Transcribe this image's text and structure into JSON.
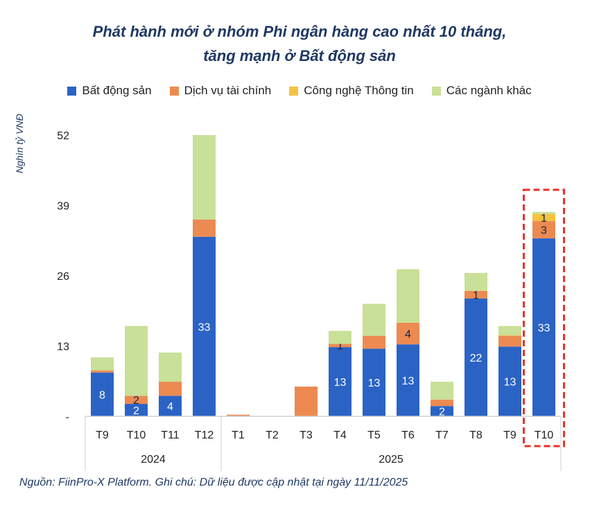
{
  "chart_data": {
    "type": "bar",
    "stacked": true,
    "title": "Phát hành mới ở nhóm Phi ngân hàng cao nhất 10 tháng, tăng mạnh ở Bất động sản",
    "title_lines": [
      "Phát hành mới ở nhóm Phi ngân hàng cao nhất 10 tháng,",
      "tăng mạnh ở Bất động sản"
    ],
    "ylabel": "Nghìn tỷ VNĐ",
    "ylim": [
      0,
      52
    ],
    "yticks": [
      "-",
      "13",
      "26",
      "39",
      "52"
    ],
    "ytick_values": [
      0,
      13,
      26,
      39,
      52
    ],
    "grid": false,
    "legend_position": "top",
    "categories": [
      "T9",
      "T10",
      "T11",
      "T12",
      "T1",
      "T2",
      "T3",
      "T4",
      "T5",
      "T6",
      "T7",
      "T8",
      "T9",
      "T10"
    ],
    "groups": [
      {
        "label": "2024",
        "count": 4
      },
      {
        "label": "2025",
        "count": 10
      }
    ],
    "series": [
      {
        "name": "Bất động sản",
        "color": "#2b63c5",
        "values": [
          8.1,
          2.3,
          3.8,
          33.2,
          0,
          0,
          0,
          12.8,
          12.5,
          13.3,
          1.9,
          21.8,
          12.9,
          32.9
        ],
        "labels": [
          "8",
          "2",
          "4",
          "33",
          "",
          "",
          "",
          "13",
          "13",
          "13",
          "2",
          "22",
          "13",
          "33"
        ],
        "label_color": "#ffffff"
      },
      {
        "name": "Dịch vụ tài chính",
        "color": "#ec8a52",
        "values": [
          0.4,
          1.5,
          2.6,
          3.2,
          0.3,
          0,
          5.5,
          0.6,
          2.4,
          4.0,
          1.2,
          1.4,
          2.0,
          3.2
        ],
        "labels": [
          "",
          "2",
          "",
          "",
          "",
          "",
          "",
          "1",
          "",
          "4",
          "",
          "1",
          "",
          "3"
        ],
        "label_color": "#1a2440"
      },
      {
        "name": "Công nghệ Thông tin",
        "color": "#f5c242",
        "values": [
          0,
          0,
          0,
          0,
          0,
          0,
          0,
          0,
          0,
          0,
          0,
          0,
          0.1,
          1.3
        ],
        "labels": [
          "",
          "",
          "",
          "",
          "",
          "",
          "",
          "",
          "",
          "",
          "",
          "",
          "",
          "1"
        ],
        "label_color": "#1a2440"
      },
      {
        "name": "Các ngành khác",
        "color": "#c8e097",
        "values": [
          2.4,
          12.9,
          5.4,
          15.6,
          0,
          0,
          0,
          2.4,
          5.9,
          9.9,
          3.3,
          3.3,
          1.7,
          0.4
        ],
        "labels": [
          "",
          "",
          "",
          "",
          "",
          "",
          "",
          "",
          "",
          "",
          "",
          "",
          "",
          ""
        ],
        "label_color": "#1a2440"
      }
    ],
    "highlight": {
      "category_index": 13,
      "color": "#e8312a"
    },
    "note": "Nguồn: FiinPro-X Platform. Ghi chú: Dữ liệu được cập nhật tại ngày 11/11/2025"
  }
}
